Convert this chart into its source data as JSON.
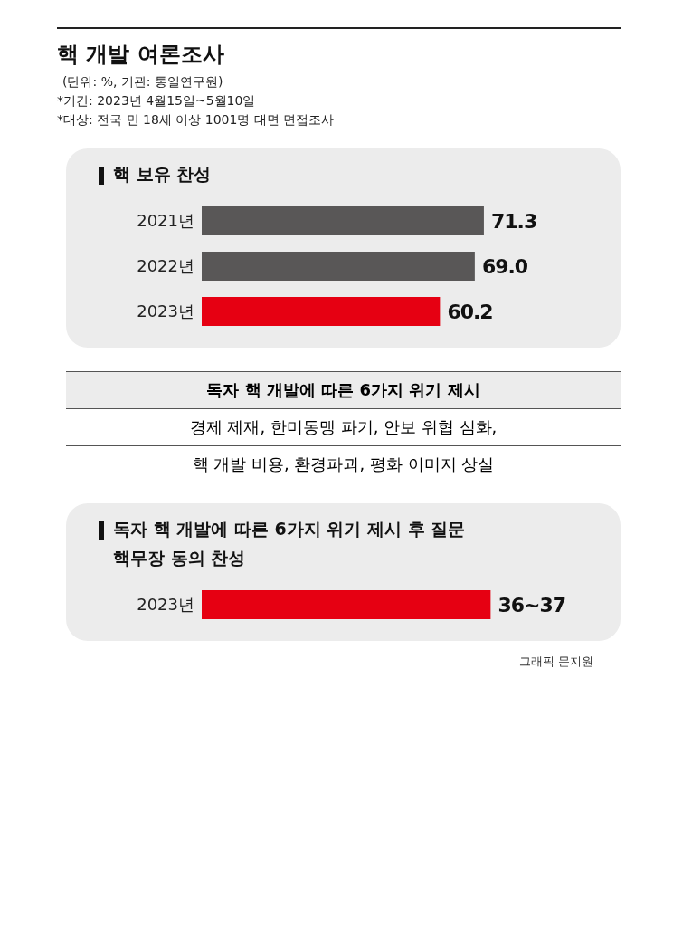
{
  "chart_data": [
    {
      "type": "other",
      "title": "핵 개발 여론조사",
      "subtitle": "(단위: %, 기관: 통일연구원)",
      "annotations": [
        "*기간: 2023년 4월15일~5월10일",
        "*대상: 전국 만 18세 이상 1001명 대면 면접조사"
      ]
    },
    {
      "type": "bar",
      "orientation": "horizontal",
      "title": "핵 보유 찬성",
      "categories": [
        "2021년",
        "2022년",
        "2023년"
      ],
      "values": [
        71.3,
        69.0,
        60.2
      ],
      "colors": [
        "#595757",
        "#595757",
        "#e60012"
      ],
      "value_labels": [
        "71.3",
        "69.0",
        "60.2"
      ],
      "tick_labels": "y"
    },
    {
      "type": "other",
      "title": "독자 핵 개발에 따른 6가지 위기 제시",
      "annotations": [
        "경제 제재, 한미동맹 파기, 안보 위협 심화,",
        "핵 개발 비용, 환경파괴, 평화 이미지 상실"
      ]
    },
    {
      "type": "bar",
      "orientation": "horizontal",
      "title": "독자 핵 개발에 따른 6가지 위기 제시 후 질문",
      "subtitle": "핵무장 동의 찬성",
      "categories": [
        "2023년"
      ],
      "values": [
        36.5
      ],
      "value_labels": [
        "36~37"
      ],
      "colors": [
        "#e60012"
      ],
      "tick_labels": "y",
      "annotations": [
        "그래픽 문지원"
      ]
    }
  ]
}
